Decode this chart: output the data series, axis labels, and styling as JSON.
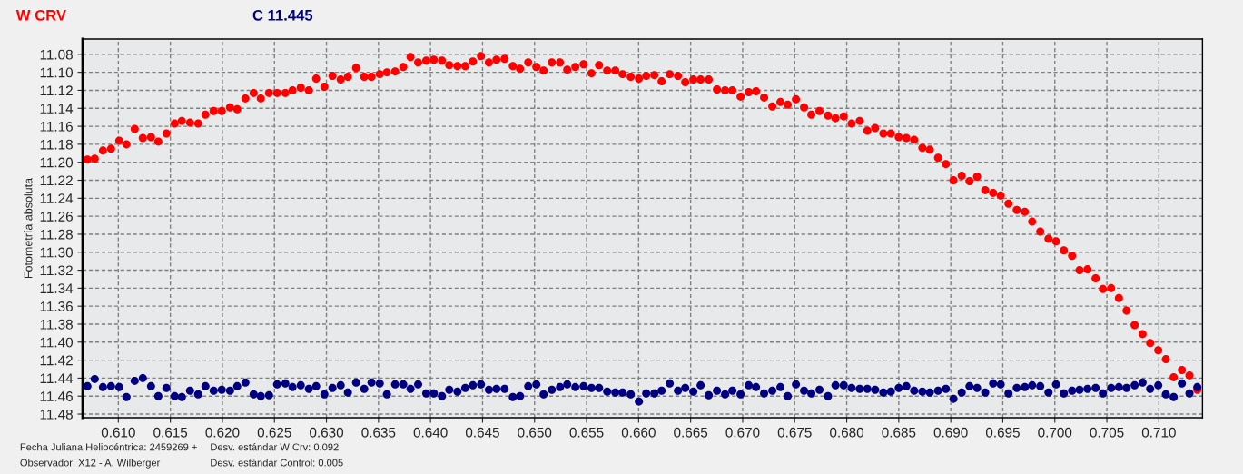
{
  "chart_data": {
    "type": "scatter",
    "ylabel": "Fotometría absoluta",
    "annotations": [
      "Fecha Juliana Heliocéntrica: 2459269 +",
      "Observador: X12 - A. Wilberger",
      "Desv. estándar W Crv: 0.092",
      "Desv. estándar Control: 0.005"
    ],
    "x": [
      0.60703,
      0.60773,
      0.60852,
      0.6093,
      0.61009,
      0.61078,
      0.61157,
      0.61235,
      0.61314,
      0.61384,
      0.61462,
      0.61541,
      0.6161,
      0.61689,
      0.61767,
      0.61837,
      0.61916,
      0.61994,
      0.62073,
      0.62142,
      0.62221,
      0.623,
      0.62369,
      0.62448,
      0.62526,
      0.62605,
      0.62674,
      0.62753,
      0.62831,
      0.62901,
      0.6298,
      0.63058,
      0.63137,
      0.63206,
      0.63285,
      0.63363,
      0.63433,
      0.63512,
      0.63581,
      0.6366,
      0.63738,
      0.63808,
      0.63881,
      0.63959,
      0.64032,
      0.6411,
      0.6418,
      0.64259,
      0.64334,
      0.64407,
      0.64485,
      0.64561,
      0.64634,
      0.64712,
      0.64791,
      0.6486,
      0.64939,
      0.65017,
      0.65087,
      0.65166,
      0.65244,
      0.65314,
      0.65392,
      0.65471,
      0.65547,
      0.6562,
      0.65698,
      0.65776,
      0.65846,
      0.65924,
      0.66003,
      0.66073,
      0.66151,
      0.66221,
      0.66299,
      0.66378,
      0.66448,
      0.66526,
      0.66596,
      0.66674,
      0.66753,
      0.66831,
      0.66901,
      0.6698,
      0.67058,
      0.67128,
      0.67206,
      0.67285,
      0.67363,
      0.67433,
      0.67512,
      0.6759,
      0.6766,
      0.67738,
      0.6782,
      0.67892,
      0.67971,
      0.68047,
      0.68125,
      0.68198,
      0.68273,
      0.68352,
      0.68424,
      0.685,
      0.68573,
      0.68648,
      0.68727,
      0.68799,
      0.68878,
      0.68953,
      0.69026,
      0.69105,
      0.6918,
      0.69253,
      0.69331,
      0.69407,
      0.6948,
      0.69555,
      0.69634,
      0.69712,
      0.69782,
      0.6986,
      0.69939,
      0.70012,
      0.70087,
      0.70166,
      0.70238,
      0.70314,
      0.70392,
      0.70462,
      0.70541,
      0.70616,
      0.70689,
      0.70767,
      0.70843,
      0.70916,
      0.70994,
      0.71067,
      0.71142,
      0.71221,
      0.71294,
      0.71369
    ],
    "series": [
      {
        "name": "W CRV",
        "color": "#ff0000",
        "values": [
          11.197,
          11.196,
          11.187,
          11.185,
          11.176,
          11.18,
          11.163,
          11.173,
          11.172,
          11.177,
          11.168,
          11.157,
          11.154,
          11.156,
          11.157,
          11.147,
          11.143,
          11.143,
          11.139,
          11.141,
          11.129,
          11.123,
          11.129,
          11.123,
          11.123,
          11.123,
          11.12,
          11.117,
          11.12,
          11.107,
          11.116,
          11.104,
          11.108,
          11.105,
          11.095,
          11.105,
          11.105,
          11.102,
          11.1,
          11.099,
          11.094,
          11.083,
          11.089,
          11.087,
          11.086,
          11.087,
          11.092,
          11.093,
          11.093,
          11.088,
          11.082,
          11.089,
          11.086,
          11.085,
          11.093,
          11.096,
          11.089,
          11.094,
          11.098,
          11.089,
          11.089,
          11.097,
          11.094,
          11.091,
          11.101,
          11.092,
          11.098,
          11.098,
          11.102,
          11.105,
          11.107,
          11.104,
          11.103,
          11.11,
          11.102,
          11.104,
          11.111,
          11.108,
          11.108,
          11.108,
          11.119,
          11.12,
          11.12,
          11.127,
          11.122,
          11.121,
          11.128,
          11.138,
          11.133,
          11.136,
          11.13,
          11.139,
          11.147,
          11.143,
          11.148,
          11.151,
          11.149,
          11.157,
          11.154,
          11.165,
          11.162,
          11.168,
          11.168,
          11.172,
          11.173,
          11.175,
          11.184,
          11.186,
          11.195,
          11.202,
          11.22,
          11.215,
          11.221,
          11.216,
          11.231,
          11.234,
          11.237,
          11.246,
          11.253,
          11.255,
          11.266,
          11.277,
          11.285,
          11.288,
          11.298,
          11.304,
          11.32,
          11.319,
          11.329,
          11.341,
          11.34,
          11.351,
          11.365,
          11.381,
          11.391,
          11.401,
          11.409,
          11.419,
          11.439,
          11.431,
          11.437,
          11.453
        ]
      },
      {
        "name": "C 11.445",
        "color": "#000080",
        "values": [
          11.449,
          11.441,
          11.45,
          11.449,
          11.45,
          11.461,
          11.443,
          11.44,
          11.449,
          11.46,
          11.451,
          11.46,
          11.461,
          11.454,
          11.458,
          11.449,
          11.454,
          11.453,
          11.454,
          11.449,
          11.445,
          11.458,
          11.46,
          11.459,
          11.447,
          11.446,
          11.45,
          11.448,
          11.452,
          11.449,
          11.458,
          11.451,
          11.448,
          11.456,
          11.445,
          11.452,
          11.445,
          11.446,
          11.458,
          11.447,
          11.447,
          11.452,
          11.447,
          11.457,
          11.457,
          11.46,
          11.453,
          11.455,
          11.451,
          11.448,
          11.447,
          11.453,
          11.452,
          11.452,
          11.461,
          11.46,
          11.449,
          11.447,
          11.458,
          11.453,
          11.45,
          11.447,
          11.45,
          11.449,
          11.451,
          11.451,
          11.455,
          11.456,
          11.456,
          11.458,
          11.466,
          11.457,
          11.457,
          11.454,
          11.446,
          11.454,
          11.451,
          11.455,
          11.448,
          11.459,
          11.454,
          11.458,
          11.454,
          11.458,
          11.448,
          11.45,
          11.457,
          11.454,
          11.45,
          11.46,
          11.447,
          11.454,
          11.457,
          11.453,
          11.46,
          11.448,
          11.448,
          11.451,
          11.452,
          11.452,
          11.453,
          11.456,
          11.455,
          11.451,
          11.449,
          11.454,
          11.455,
          11.456,
          11.454,
          11.452,
          11.463,
          11.456,
          11.449,
          11.451,
          11.456,
          11.446,
          11.447,
          11.457,
          11.451,
          11.45,
          11.448,
          11.449,
          11.456,
          11.447,
          11.457,
          11.454,
          11.453,
          11.452,
          11.451,
          11.457,
          11.451,
          11.45,
          11.451,
          11.448,
          11.445,
          11.452,
          11.448,
          11.458,
          11.461,
          11.446,
          11.457,
          11.45
        ]
      }
    ],
    "xlim": [
      0.60657,
      0.71419
    ],
    "xticks": [
      {
        "value": 0.61,
        "label": "0.610"
      },
      {
        "value": 0.615,
        "label": "0.615"
      },
      {
        "value": 0.62,
        "label": "0.620"
      },
      {
        "value": 0.625,
        "label": "0.625"
      },
      {
        "value": 0.63,
        "label": "0.630"
      },
      {
        "value": 0.635,
        "label": "0.635"
      },
      {
        "value": 0.64,
        "label": "0.640"
      },
      {
        "value": 0.645,
        "label": "0.645"
      },
      {
        "value": 0.65,
        "label": "0.650"
      },
      {
        "value": 0.655,
        "label": "0.655"
      },
      {
        "value": 0.66,
        "label": "0.660"
      },
      {
        "value": 0.665,
        "label": "0.665"
      },
      {
        "value": 0.67,
        "label": "0.670"
      },
      {
        "value": 0.675,
        "label": "0.675"
      },
      {
        "value": 0.68,
        "label": "0.680"
      },
      {
        "value": 0.685,
        "label": "0.685"
      },
      {
        "value": 0.69,
        "label": "0.690"
      },
      {
        "value": 0.695,
        "label": "0.695"
      },
      {
        "value": 0.7,
        "label": "0.700"
      },
      {
        "value": 0.705,
        "label": "0.705"
      },
      {
        "value": 0.71,
        "label": "0.710"
      }
    ],
    "ylim": [
      11.484,
      11.063
    ],
    "yticks": [
      11.08,
      {
        "value": 11.1,
        "label": "11.10"
      },
      11.12,
      11.14,
      11.16,
      11.18,
      {
        "value": 11.2,
        "label": "11.20"
      },
      11.22,
      11.24,
      11.26,
      11.28,
      {
        "value": 11.3,
        "label": "11.30"
      },
      11.32,
      11.34,
      11.36,
      11.38,
      {
        "value": 11.4,
        "label": "11.40"
      },
      11.42,
      11.44,
      11.46,
      11.48
    ],
    "grid": true,
    "marker": "circle"
  }
}
